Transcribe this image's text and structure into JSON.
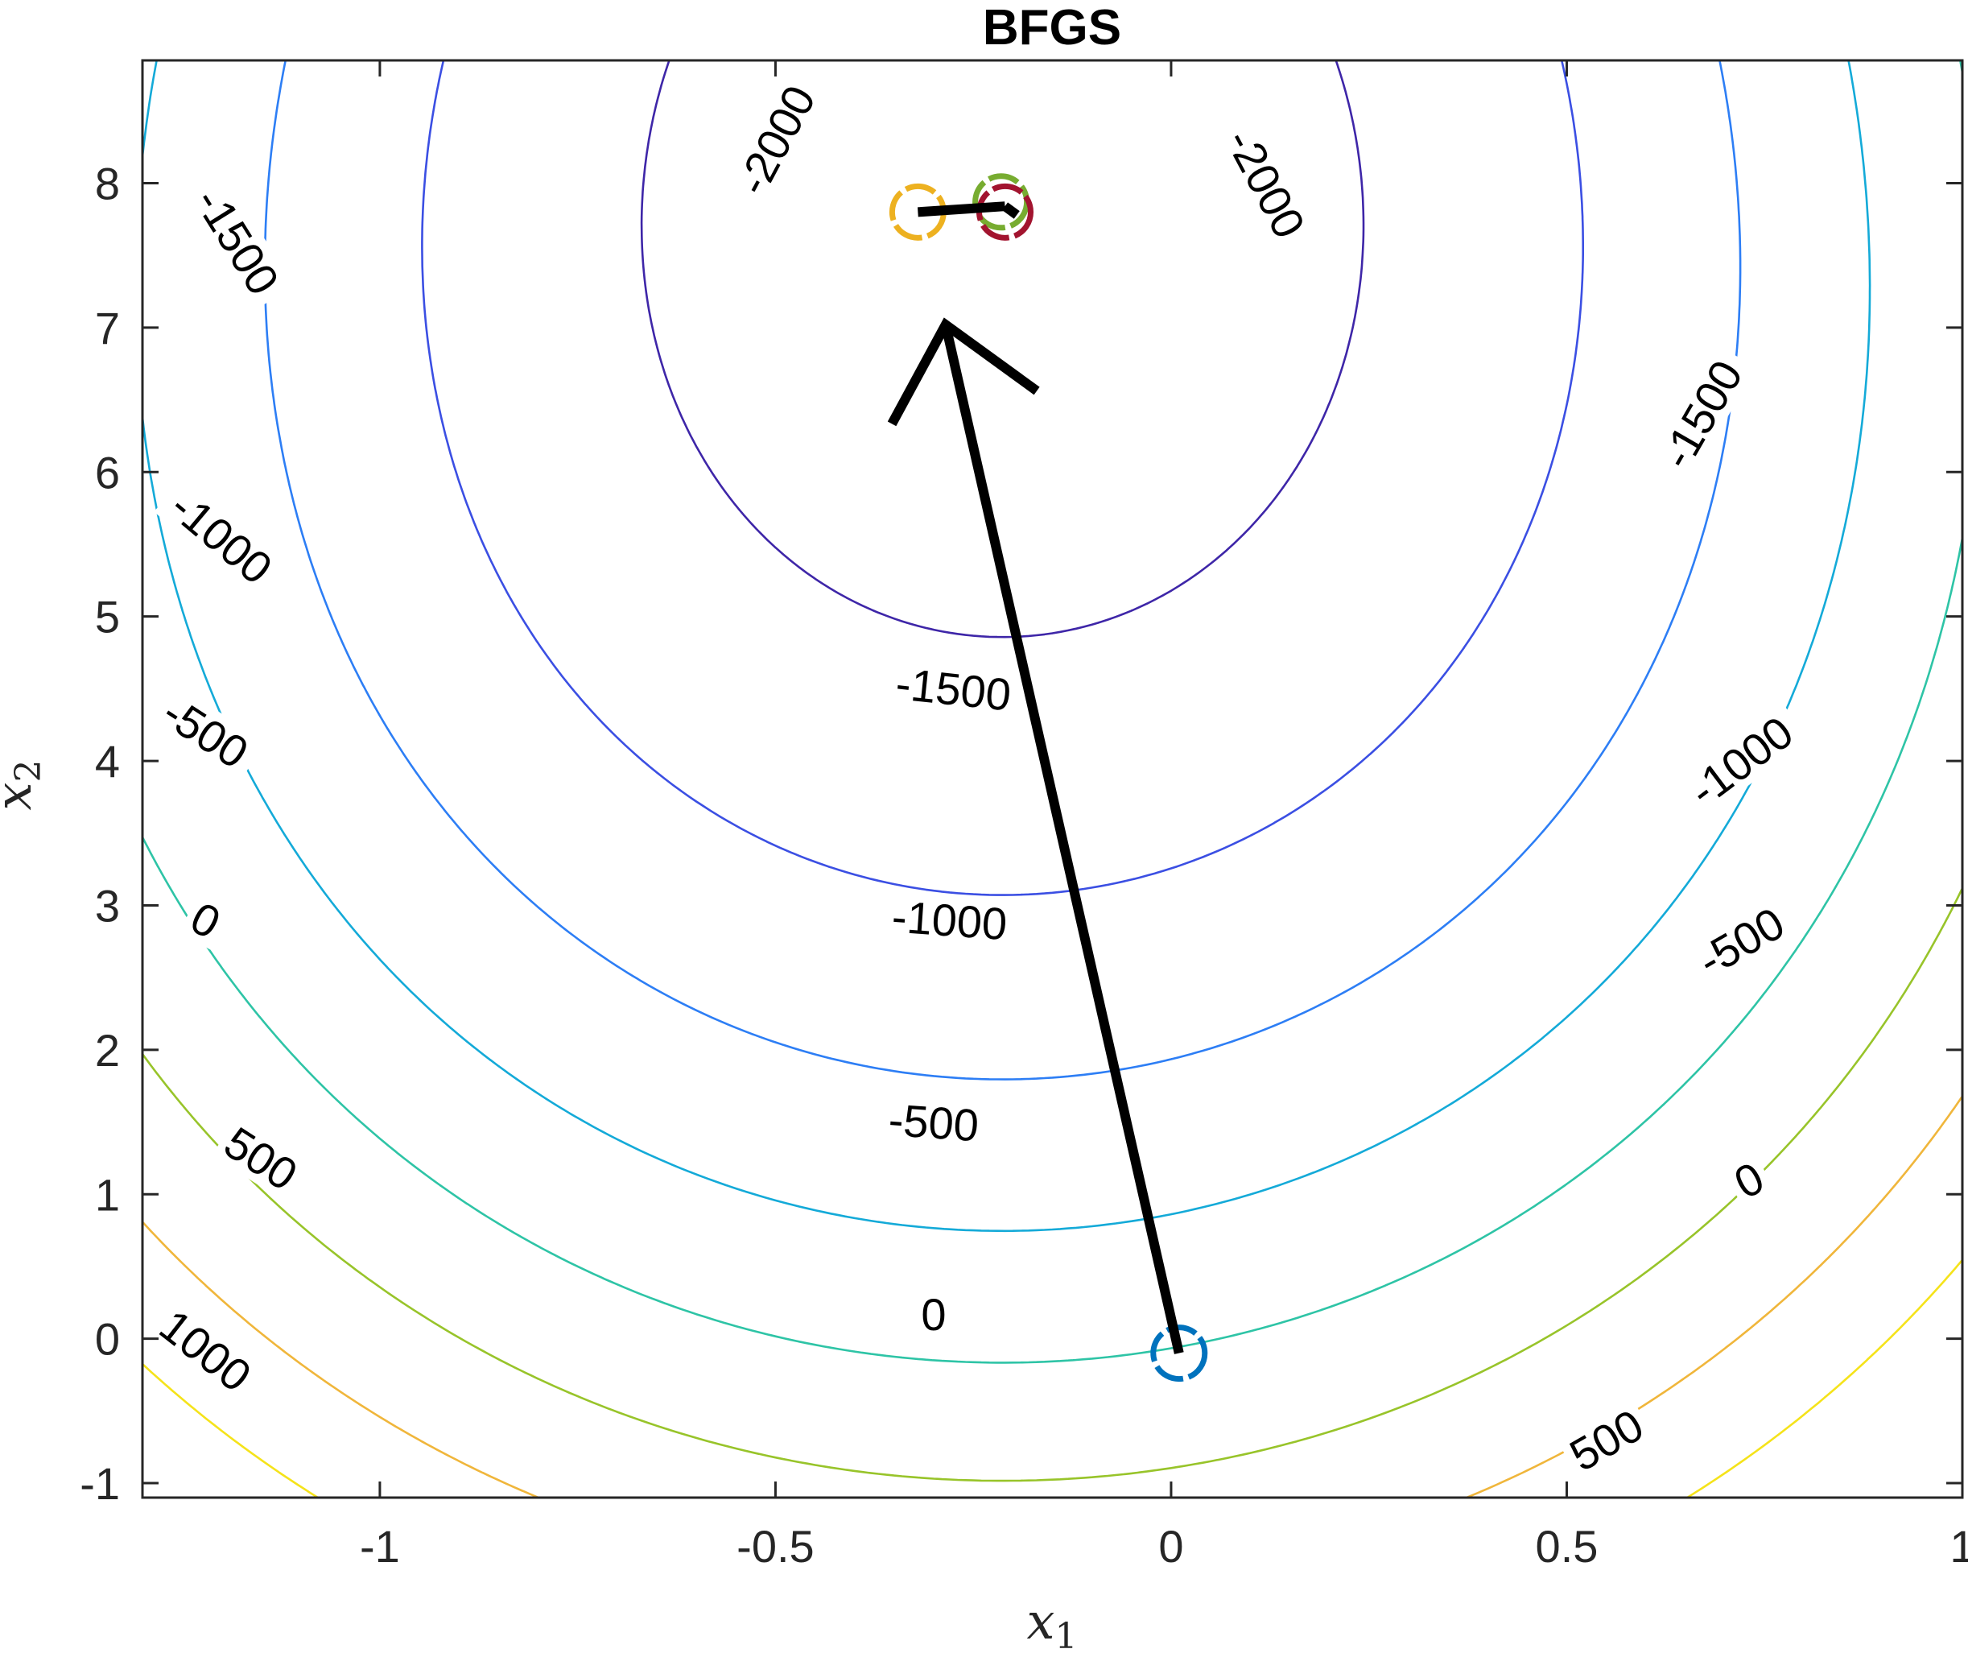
{
  "chart_data": {
    "type": "contour",
    "title": "BFGS",
    "xlabel_base": "x",
    "xlabel_sub": "1",
    "ylabel_base": "x",
    "ylabel_sub": "2",
    "xlim": [
      -1.3,
      1.0
    ],
    "ylim": [
      -1.1,
      8.85
    ],
    "x_ticks": [
      {
        "value": -1,
        "label": "-1"
      },
      {
        "value": -0.5,
        "label": "-0.5"
      },
      {
        "value": 0,
        "label": "0"
      },
      {
        "value": 0.5,
        "label": "0.5"
      },
      {
        "value": 1,
        "label": "1"
      }
    ],
    "y_ticks": [
      {
        "value": -1,
        "label": "-1"
      },
      {
        "value": 0,
        "label": "0"
      },
      {
        "value": 1,
        "label": "1"
      },
      {
        "value": 2,
        "label": "2"
      },
      {
        "value": 3,
        "label": "3"
      },
      {
        "value": 4,
        "label": "4"
      },
      {
        "value": 5,
        "label": "5"
      },
      {
        "value": 6,
        "label": "6"
      },
      {
        "value": 7,
        "label": "7"
      },
      {
        "value": 8,
        "label": "8"
      }
    ],
    "contour_model": {
      "center": [
        -0.213,
        7.8
      ],
      "minimum": -2316,
      "a": 1520,
      "b": 36.5,
      "c": 32
    },
    "levels": [
      {
        "value": -2000,
        "color": "#3e26a8"
      },
      {
        "value": -1500,
        "color": "#3b4fe3"
      },
      {
        "value": -1000,
        "color": "#2d7ef5"
      },
      {
        "value": -500,
        "color": "#14aad8"
      },
      {
        "value": 0,
        "color": "#2ec4a6"
      },
      {
        "value": 500,
        "color": "#98c42a"
      },
      {
        "value": 1000,
        "color": "#f0b63b"
      },
      {
        "value": 1500,
        "color": "#f5e31a"
      }
    ],
    "contour_labels": [
      {
        "text": "-2000",
        "x": -0.5,
        "y": 8.3,
        "angle": -62
      },
      {
        "text": "-2000",
        "x": 0.12,
        "y": 8.0,
        "angle": 62
      },
      {
        "text": "-1500",
        "x": -1.18,
        "y": 7.6,
        "angle": 58
      },
      {
        "text": "-1500",
        "x": 0.67,
        "y": 6.4,
        "angle": -60
      },
      {
        "text": "-1500",
        "x": -0.275,
        "y": 4.5,
        "angle": 6
      },
      {
        "text": "-1000",
        "x": -1.2,
        "y": 5.55,
        "angle": 40
      },
      {
        "text": "-1000",
        "x": 0.72,
        "y": 4.0,
        "angle": -37
      },
      {
        "text": "-1000",
        "x": -0.28,
        "y": 2.9,
        "angle": 4
      },
      {
        "text": "-500",
        "x": -1.22,
        "y": 4.2,
        "angle": 33
      },
      {
        "text": "-500",
        "x": 0.72,
        "y": 2.75,
        "angle": -30
      },
      {
        "text": "-500",
        "x": -0.3,
        "y": 1.5,
        "angle": 4
      },
      {
        "text": "0",
        "x": -1.22,
        "y": 2.9,
        "angle": 28
      },
      {
        "text": "0",
        "x": 0.73,
        "y": 1.1,
        "angle": -28
      },
      {
        "text": "0",
        "x": -0.3,
        "y": 0.17,
        "angle": 0
      },
      {
        "text": "500",
        "x": -1.15,
        "y": 1.25,
        "angle": 33
      },
      {
        "text": "500",
        "x": 0.55,
        "y": -0.7,
        "angle": -30
      },
      {
        "text": "1000",
        "x": -1.22,
        "y": -0.08,
        "angle": 38
      }
    ],
    "iterates": [
      {
        "x": 0.01,
        "y": -0.1,
        "color": "#0072bd"
      },
      {
        "x": -0.32,
        "y": 7.8,
        "color": "#edb120"
      },
      {
        "x": -0.215,
        "y": 7.87,
        "color": "#77ac30"
      },
      {
        "x": -0.21,
        "y": 7.8,
        "color": "#a2142f"
      }
    ],
    "steps": [
      {
        "from": [
          0.01,
          -0.1
        ],
        "to": [
          -0.285,
          7.02
        ],
        "arrowhead": true
      },
      {
        "from": [
          -0.32,
          7.8
        ],
        "to": [
          -0.21,
          7.84
        ],
        "arrowhead": false
      },
      {
        "from": [
          -0.21,
          7.84
        ],
        "to": [
          -0.195,
          7.78
        ],
        "arrowhead": false
      }
    ]
  }
}
